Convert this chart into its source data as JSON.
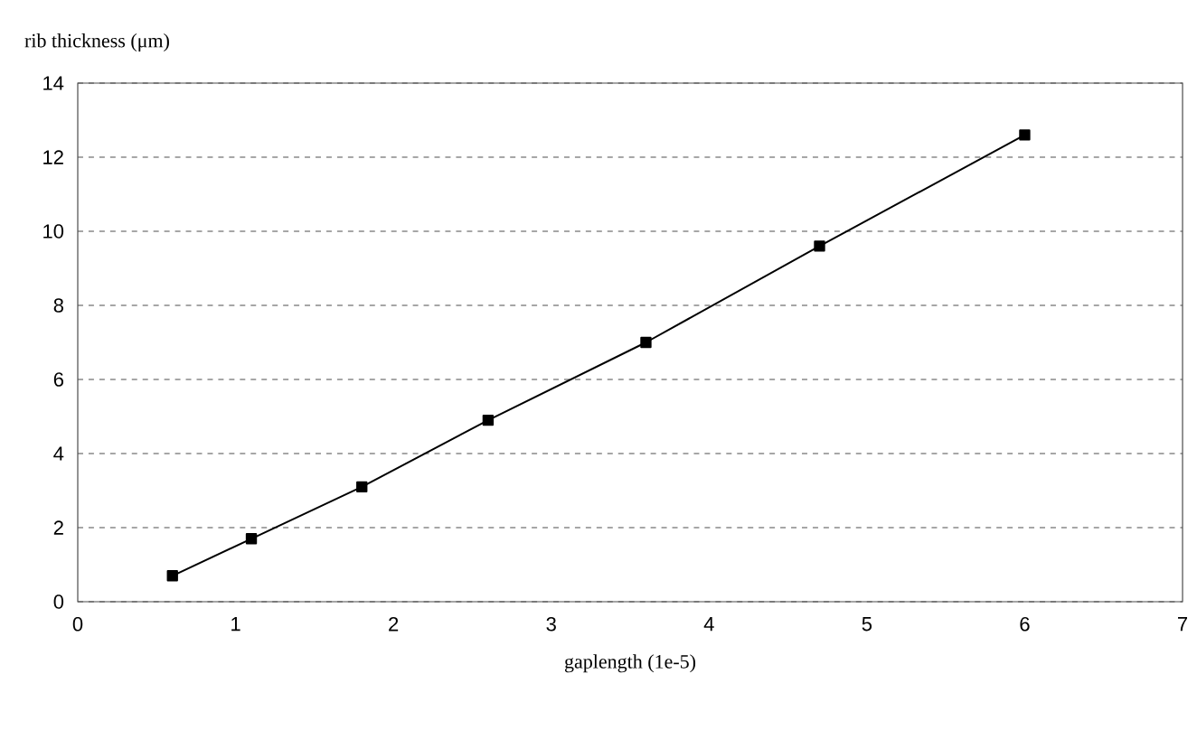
{
  "chart_data": {
    "type": "line",
    "xlabel": "gaplength (1e-5)",
    "ylabel": "rib thickness (μm)",
    "x": [
      0.6,
      1.1,
      1.8,
      2.6,
      3.6,
      4.7,
      6.0
    ],
    "series": [
      {
        "color": "#000000",
        "values": [
          0.7,
          1.7,
          3.1,
          4.9,
          7.0,
          9.6,
          12.6
        ]
      }
    ],
    "xlim": [
      0,
      7
    ],
    "ylim": [
      0,
      14
    ],
    "xticks": [
      0,
      1,
      2,
      3,
      4,
      5,
      6,
      7
    ],
    "yticks": [
      0,
      2,
      4,
      6,
      8,
      10,
      12,
      14
    ],
    "grid": "y",
    "marker": "square",
    "line_style": "solid"
  }
}
